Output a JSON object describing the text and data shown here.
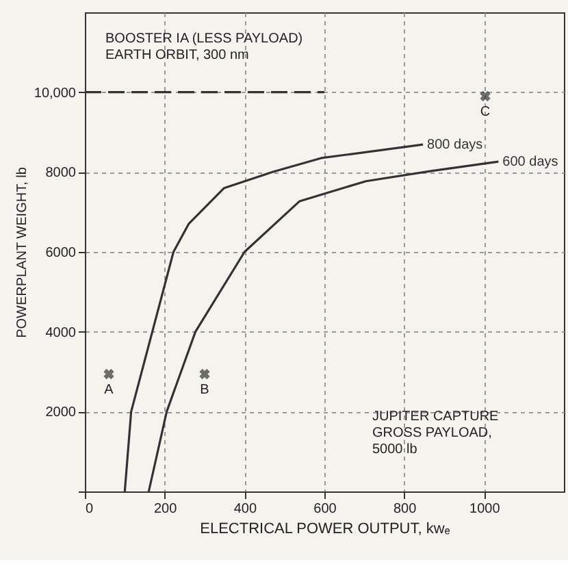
{
  "chart_data": {
    "type": "line",
    "xlabel": "ELECTRICAL POWER OUTPUT, kwₑ",
    "ylabel": "POWERPLANT WEIGHT, lb",
    "xlim": [
      0,
      1200
    ],
    "ylim": [
      0,
      12000
    ],
    "xticks": [
      0,
      200,
      400,
      600,
      800,
      1000
    ],
    "yticks": [
      {
        "value": 0,
        "label": null
      },
      2000,
      4000,
      6000,
      8000,
      {
        "value": 10000,
        "label": "10,000"
      }
    ],
    "grid": true,
    "marker": "none",
    "line_style": "solid",
    "series": [
      {
        "name": "800 days",
        "color": "#333333",
        "x": [
          100,
          116,
          169,
          222,
          260,
          349,
          470,
          592,
          847
        ],
        "values": [
          0,
          2000,
          4000,
          6000,
          6700,
          7600,
          8000,
          8350,
          8690
        ]
      },
      {
        "name": "600 days",
        "color": "#333333",
        "x": [
          160,
          205,
          277,
          400,
          538,
          704,
          870,
          1036
        ],
        "values": [
          0,
          2000,
          4000,
          6000,
          7270,
          7770,
          8030,
          8260
        ]
      },
      {
        "color": "#333333",
        "line_style": "dashed",
        "x": [
          0,
          600
        ],
        "values": [
          10000,
          10000
        ]
      },
      {
        "type": "scatter",
        "marker": "cross",
        "color": "#333333",
        "x": [
          60,
          300,
          1003
        ],
        "values": [
          2940,
          2940,
          9900
        ]
      }
    ],
    "annotations": [
      "BOOSTER IA (LESS PAYLOAD)\nEARTH ORBIT, 300 nm",
      "JUPITER CAPTURE\nGROSS PAYLOAD,\n5000 lb",
      {
        "text": "A",
        "x": 60,
        "y": 2940
      },
      {
        "text": "B",
        "x": 300,
        "y": 2940
      },
      {
        "text": "C",
        "x": 1003,
        "y": 9900
      }
    ]
  }
}
